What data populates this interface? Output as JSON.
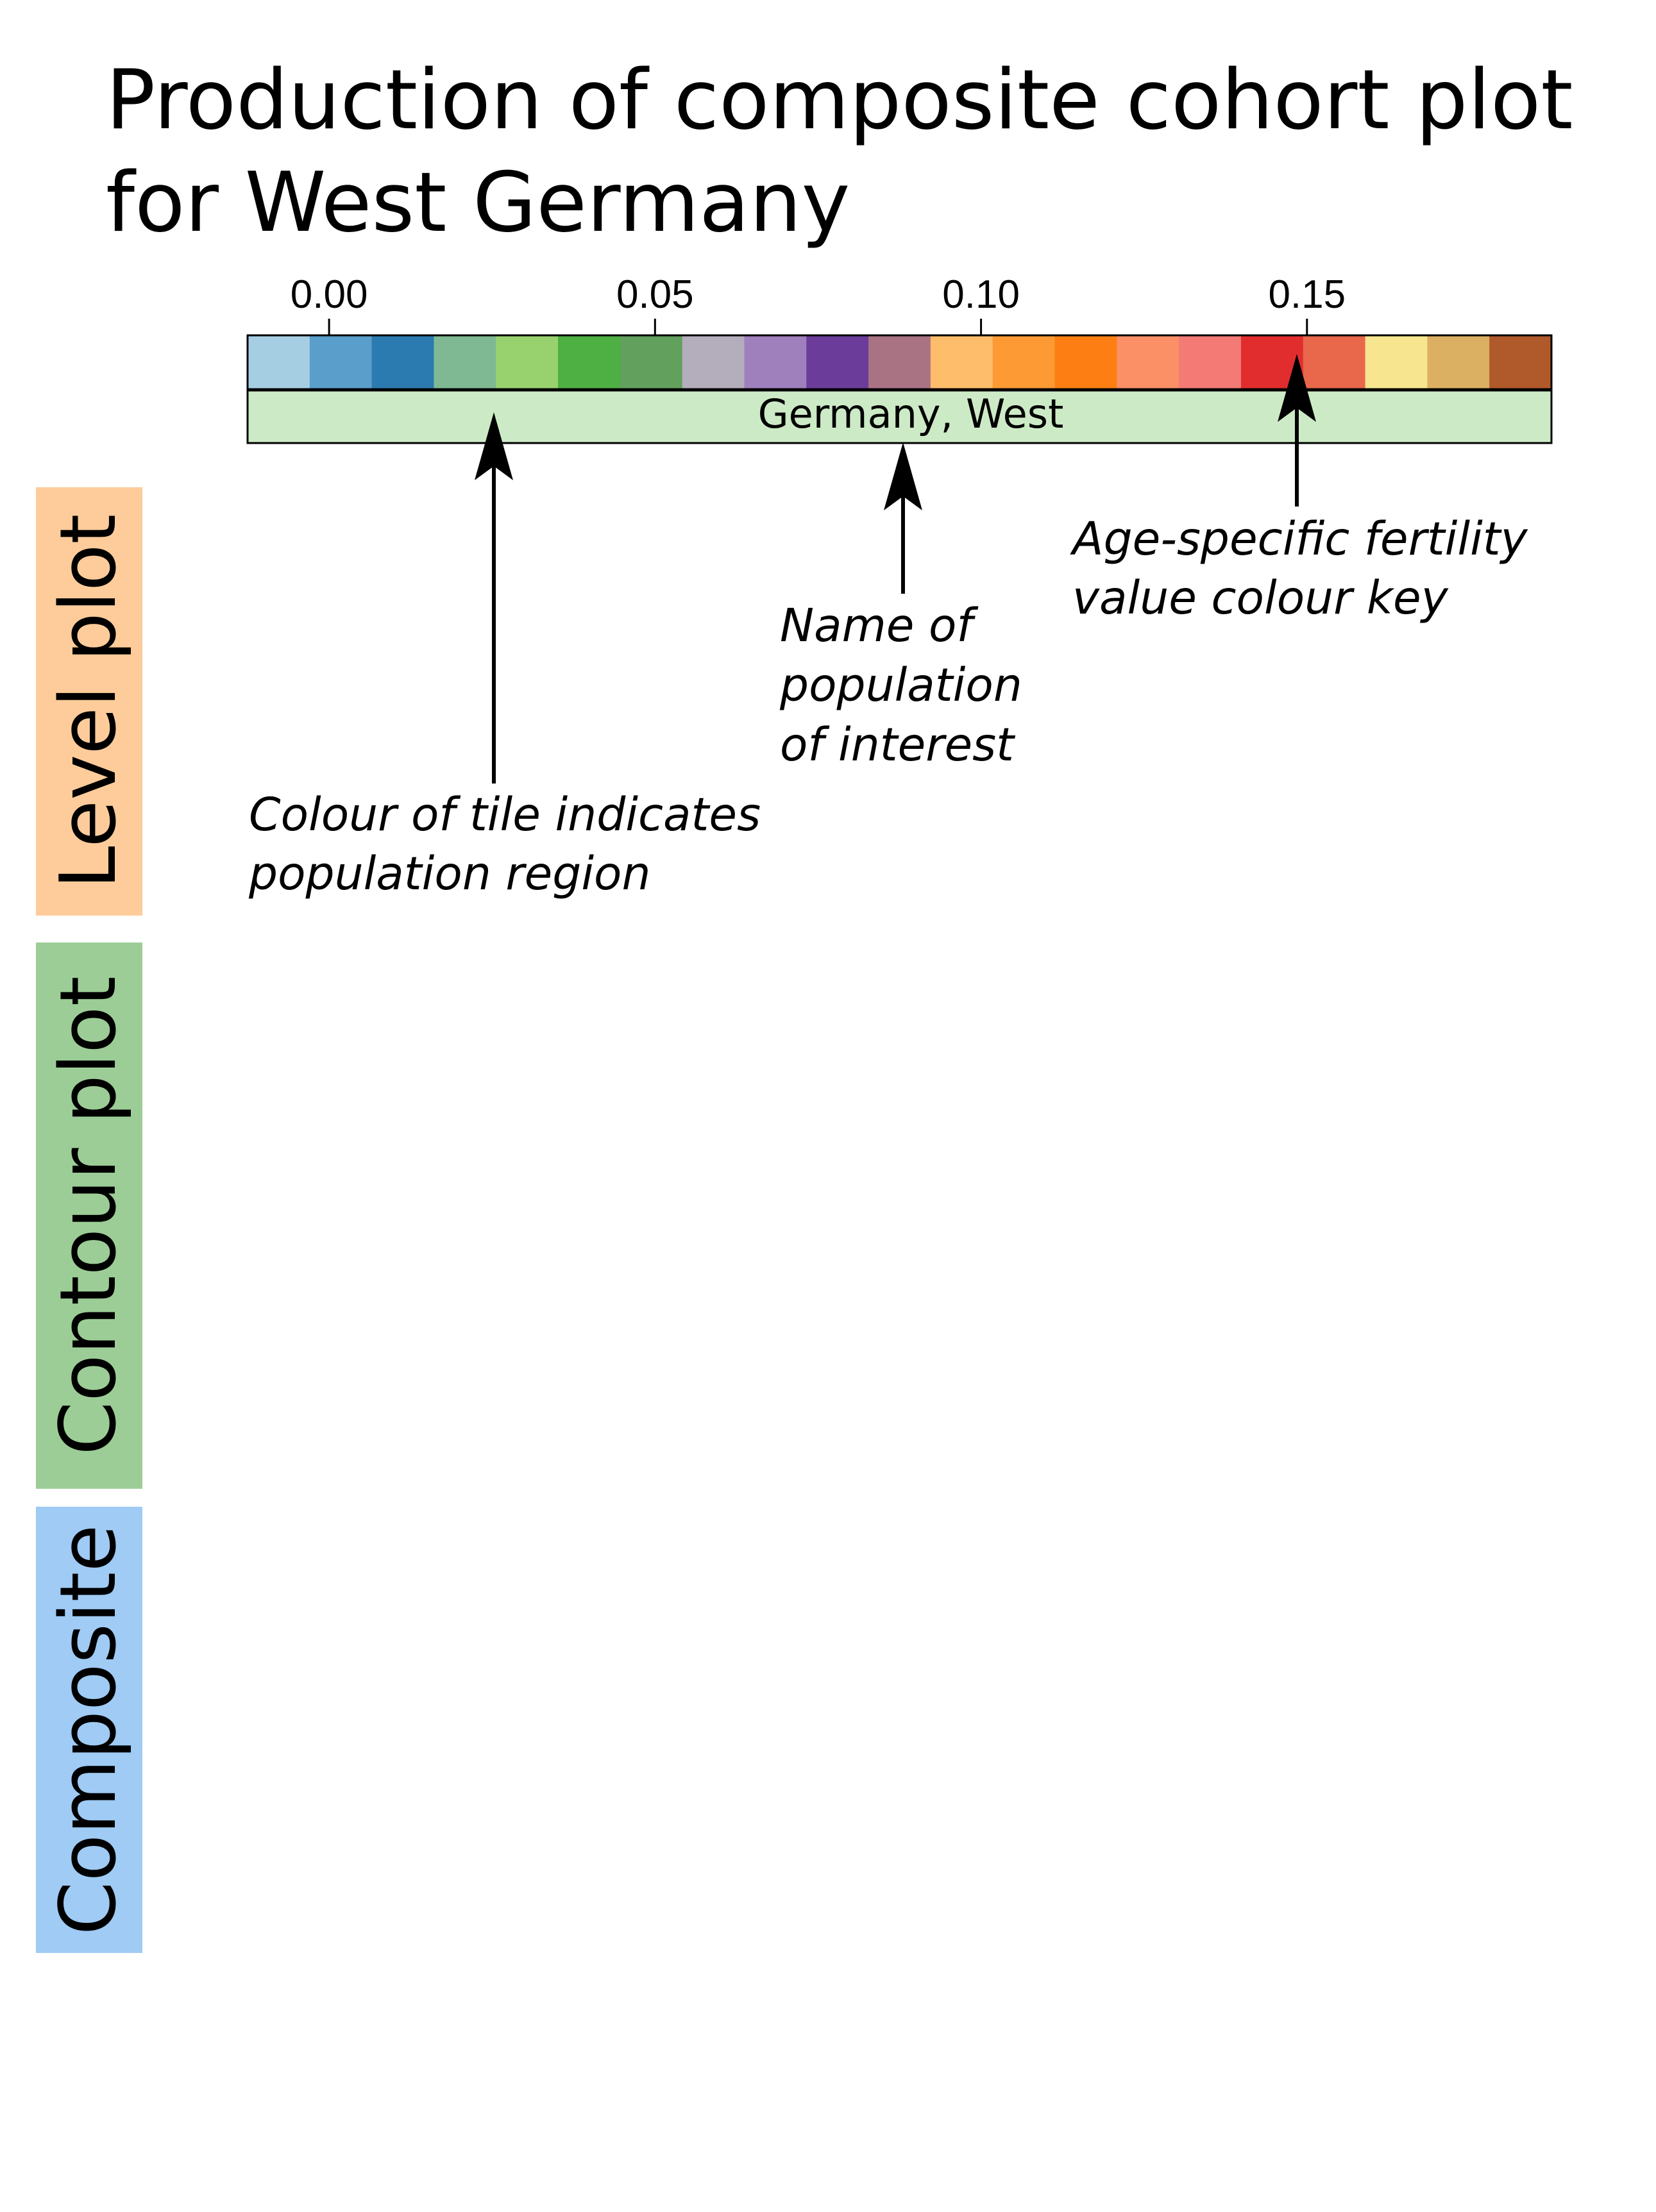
{
  "title": {
    "line1": "Production of composite cohort plot",
    "line2": "for West Germany"
  },
  "colour_key": {
    "ticks": [
      {
        "value": 0.0,
        "label": "0.00"
      },
      {
        "value": 0.05,
        "label": "0.05"
      },
      {
        "value": 0.1,
        "label": "0.10"
      },
      {
        "value": 0.15,
        "label": "0.15"
      }
    ],
    "range": [
      -0.0125,
      0.1875
    ],
    "swatches": [
      "#a6cee3",
      "#5a9ecb",
      "#2b7bb0",
      "#7fb994",
      "#98d26f",
      "#4eaf43",
      "#62a05d",
      "#b4adbb",
      "#a07fbd",
      "#6b3c9a",
      "#aa7384",
      "#fdbd6a",
      "#fd9a33",
      "#fd7f13",
      "#fb8f66",
      "#f47a76",
      "#e22d2f",
      "#e9674a",
      "#f7e68f",
      "#dbb062",
      "#b0592a"
    ],
    "population_name": "Germany, West",
    "population_band_color": "#cdeac6"
  },
  "annotations": {
    "colour_key_note": {
      "lines": [
        "Age-specific fertility",
        "value colour key"
      ]
    },
    "population_name_note": {
      "lines": [
        "Name of",
        "population",
        "of interest"
      ]
    },
    "tile_colour_note": {
      "lines": [
        "Colour of tile indicates",
        "population region"
      ]
    }
  },
  "side_labels": [
    {
      "text": "Level plot",
      "color": "#fdcc9a"
    },
    {
      "text": "Contour plot",
      "color": "#9ccd96"
    },
    {
      "text": "Composite",
      "color": "#9fcbf4"
    }
  ]
}
